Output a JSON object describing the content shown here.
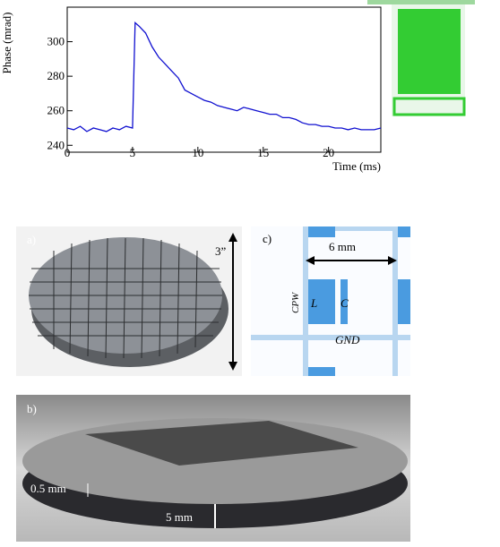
{
  "chart_data": {
    "type": "line",
    "xlabel": "Time (ms)",
    "ylabel": "Phase (mrad)",
    "x": [
      0,
      0.5,
      1,
      1.5,
      2,
      2.5,
      3,
      3.5,
      4,
      4.5,
      5,
      5.2,
      5.5,
      6,
      6.5,
      7,
      7.5,
      8,
      8.5,
      9,
      9.5,
      10,
      10.5,
      11,
      11.5,
      12,
      12.5,
      13,
      13.5,
      14,
      14.5,
      15,
      15.5,
      16,
      16.5,
      17,
      17.5,
      18,
      18.5,
      19,
      19.5,
      20,
      20.5,
      21,
      21.5,
      22,
      22.5,
      23,
      23.5,
      24
    ],
    "series": [
      {
        "color": "#1010d0",
        "values": [
          250,
          249,
          251,
          248,
          250,
          249,
          248,
          250,
          249,
          251,
          250,
          311,
          309,
          305,
          297,
          291,
          287,
          283,
          279,
          272,
          270,
          268,
          266,
          265,
          263,
          262,
          261,
          260,
          262,
          261,
          260,
          259,
          258,
          258,
          256,
          256,
          255,
          253,
          252,
          252,
          251,
          251,
          250,
          250,
          249,
          250,
          249,
          249,
          249,
          250
        ]
      }
    ],
    "xlim": [
      0,
      24
    ],
    "ylim": [
      236,
      320
    ],
    "xticks": [
      0,
      5,
      10,
      15,
      20
    ],
    "yticks": [
      240,
      260,
      280,
      300
    ]
  },
  "panels": {
    "a": {
      "label": "a)",
      "size": "3”"
    },
    "c": {
      "label": "c)",
      "width": "6 mm",
      "inductor": "L",
      "capacitor": "C",
      "line": "CPW",
      "ground": "GND"
    },
    "b": {
      "label": "b)",
      "thickness": "0.5 mm",
      "height": "5 mm"
    }
  }
}
